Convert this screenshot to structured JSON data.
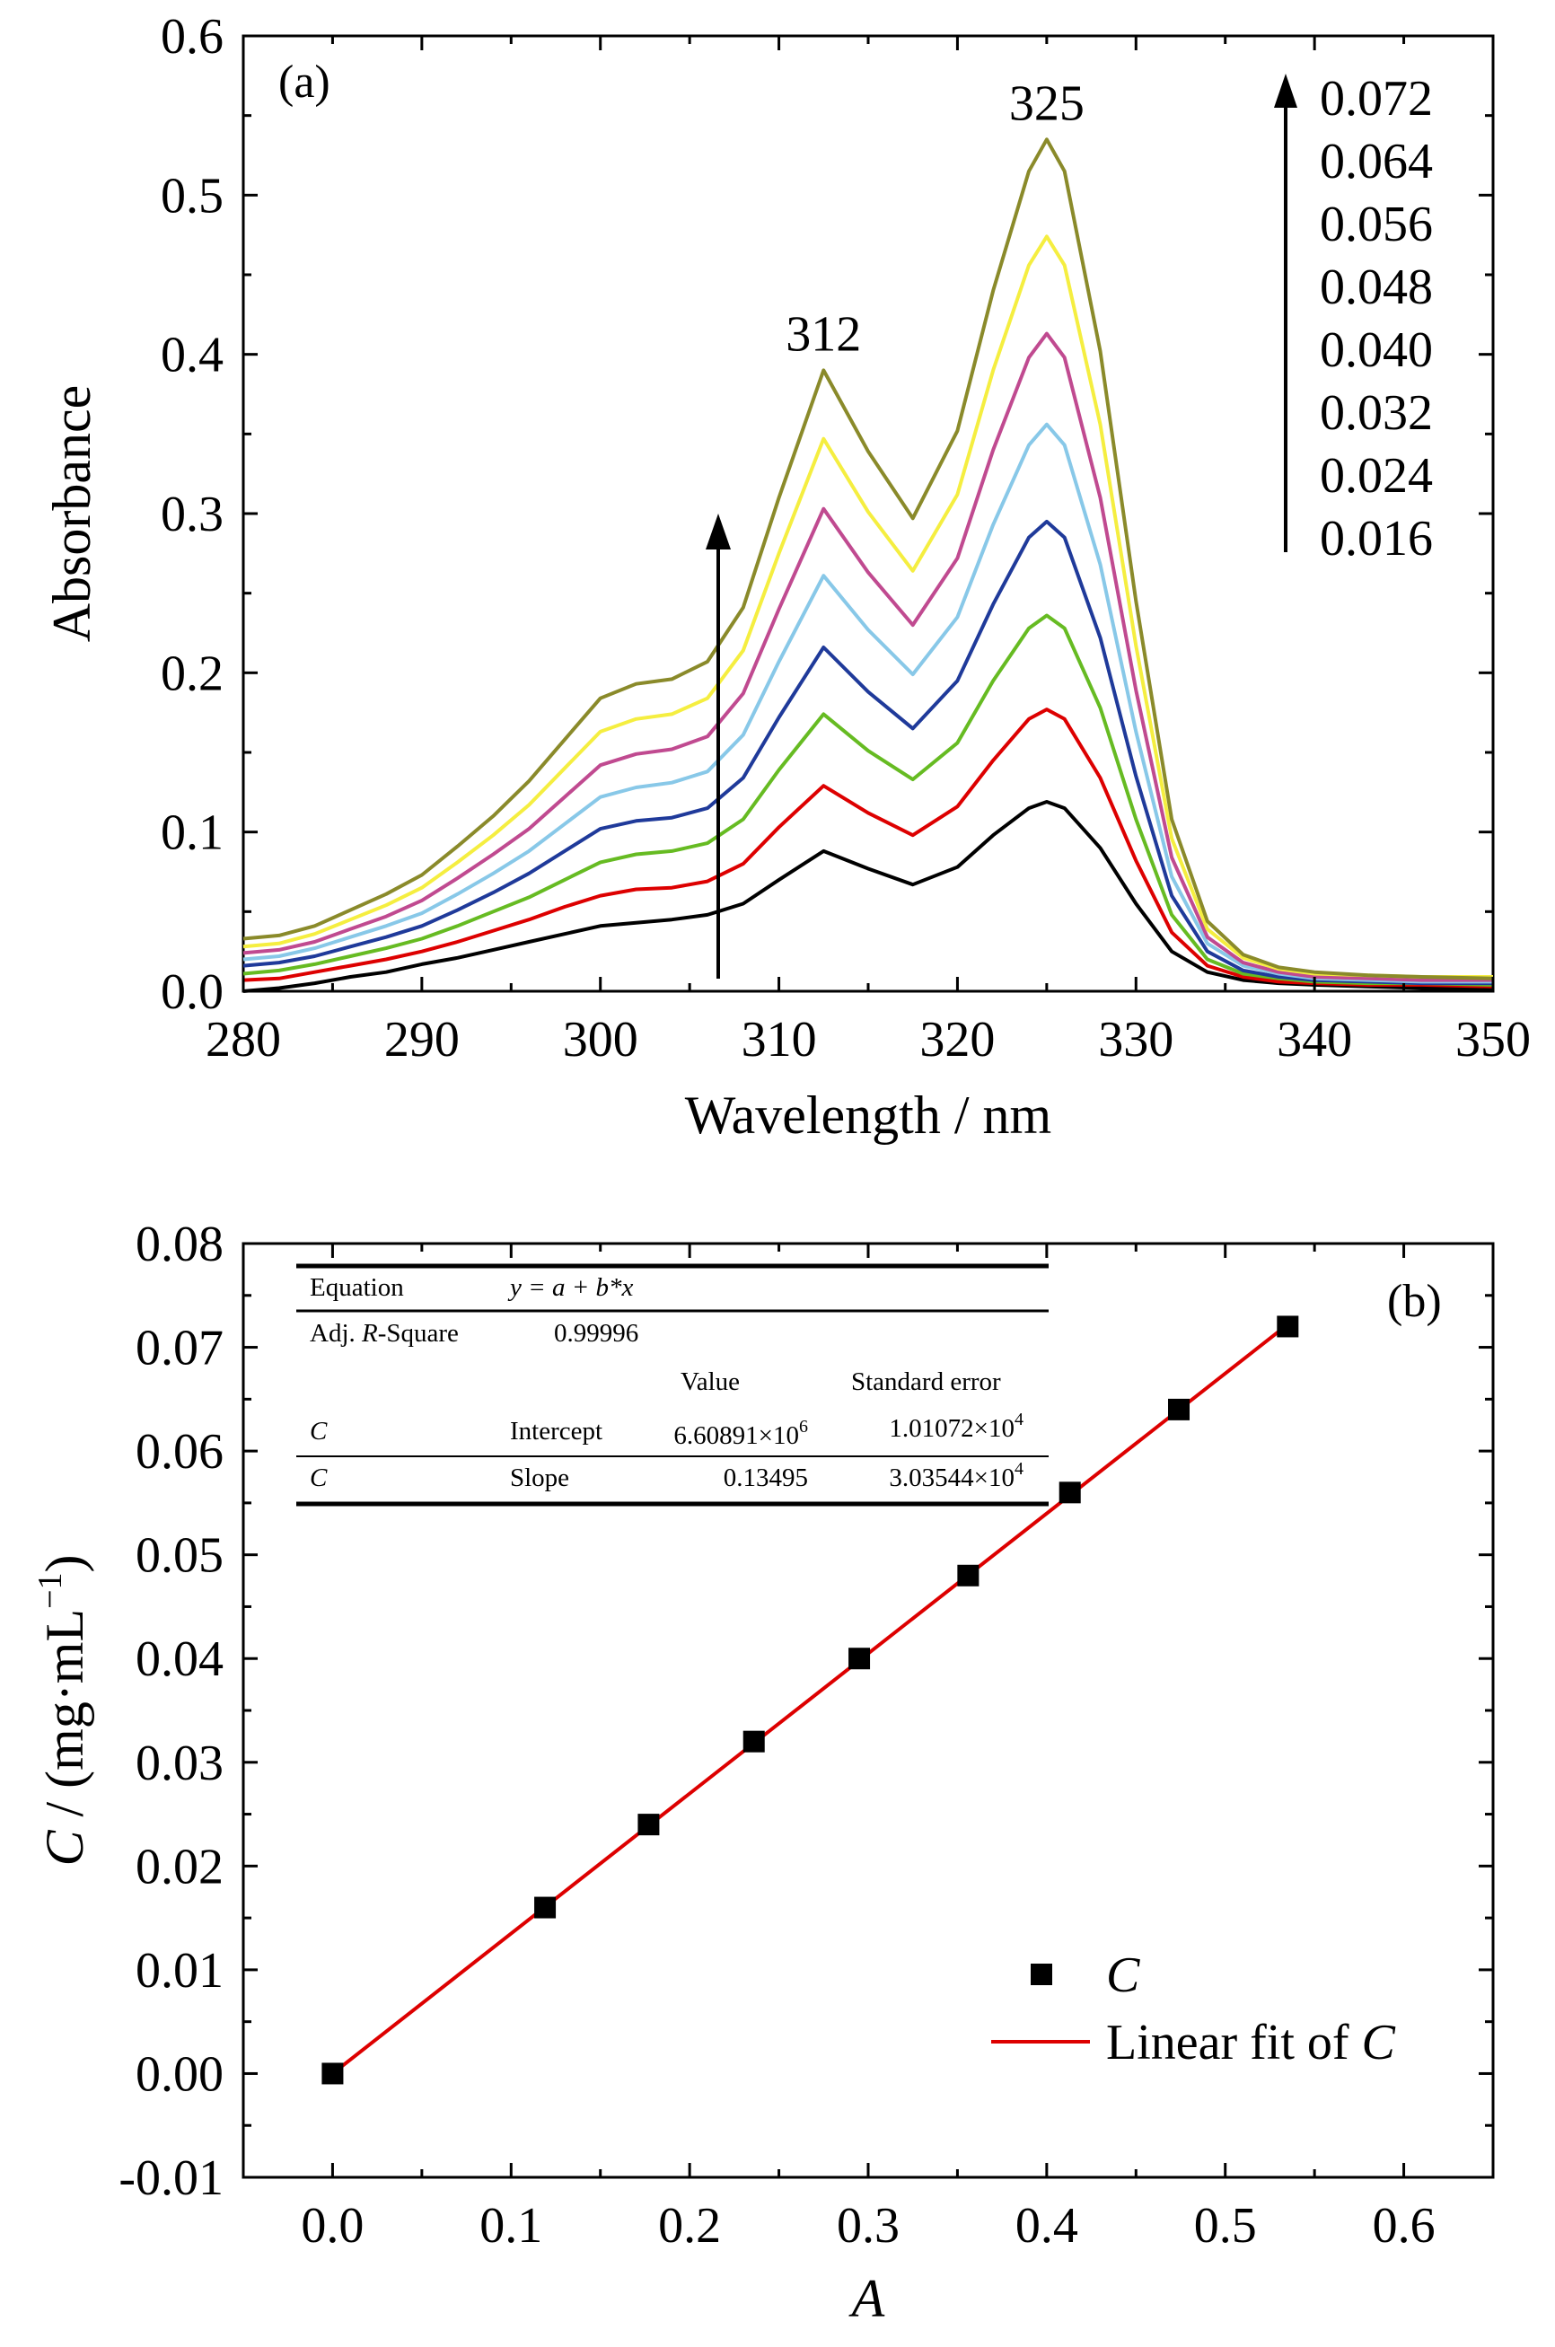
{
  "chart_data": [
    {
      "type": "line",
      "panel_label": "(a)",
      "xlabel": "Wavelength / nm",
      "ylabel": "Absorbance",
      "xlim": [
        280,
        350
      ],
      "ylim": [
        0,
        0.6
      ],
      "xticks": [
        "280",
        "290",
        "300",
        "310",
        "320",
        "330",
        "340",
        "350"
      ],
      "yticks": [
        "0.0",
        "0.1",
        "0.2",
        "0.3",
        "0.4",
        "0.5",
        "0.6"
      ],
      "peak_labels": [
        {
          "text": "312",
          "x": 312.5,
          "y": 0.39
        },
        {
          "text": "325",
          "x": 325,
          "y": 0.535
        }
      ],
      "concentration_labels": [
        "0.072",
        "0.064",
        "0.056",
        "0.048",
        "0.040",
        "0.032",
        "0.024",
        "0.016"
      ],
      "x": [
        280,
        282,
        284,
        286,
        288,
        290,
        292,
        294,
        296,
        298,
        300,
        302,
        304,
        306,
        308,
        310,
        312.5,
        315,
        317.5,
        320,
        322,
        324,
        325,
        326,
        328,
        330,
        332,
        334,
        336,
        338,
        340,
        343,
        346,
        350
      ],
      "series": [
        {
          "color": "#000000",
          "values": [
            0.0,
            0.002,
            0.005,
            0.009,
            0.012,
            0.017,
            0.021,
            0.026,
            0.031,
            0.036,
            0.041,
            0.043,
            0.045,
            0.048,
            0.055,
            0.07,
            0.088,
            0.077,
            0.067,
            0.078,
            0.098,
            0.115,
            0.119,
            0.115,
            0.09,
            0.055,
            0.025,
            0.012,
            0.007,
            0.005,
            0.004,
            0.003,
            0.002,
            0.002
          ]
        },
        {
          "color": "#dd0000",
          "values": [
            0.007,
            0.008,
            0.012,
            0.016,
            0.02,
            0.025,
            0.031,
            0.038,
            0.045,
            0.053,
            0.06,
            0.064,
            0.065,
            0.069,
            0.08,
            0.103,
            0.129,
            0.112,
            0.098,
            0.116,
            0.145,
            0.171,
            0.177,
            0.171,
            0.134,
            0.082,
            0.037,
            0.016,
            0.009,
            0.006,
            0.005,
            0.004,
            0.004,
            0.003
          ]
        },
        {
          "color": "#66bb22",
          "values": [
            0.011,
            0.013,
            0.017,
            0.022,
            0.027,
            0.033,
            0.041,
            0.05,
            0.059,
            0.07,
            0.081,
            0.086,
            0.088,
            0.093,
            0.108,
            0.139,
            0.174,
            0.151,
            0.133,
            0.156,
            0.195,
            0.228,
            0.236,
            0.228,
            0.178,
            0.108,
            0.048,
            0.02,
            0.011,
            0.008,
            0.006,
            0.005,
            0.005,
            0.004
          ]
        },
        {
          "color": "#1f3a9a",
          "values": [
            0.016,
            0.018,
            0.022,
            0.028,
            0.034,
            0.041,
            0.051,
            0.062,
            0.074,
            0.088,
            0.102,
            0.107,
            0.109,
            0.115,
            0.134,
            0.172,
            0.216,
            0.188,
            0.165,
            0.195,
            0.243,
            0.285,
            0.295,
            0.285,
            0.222,
            0.135,
            0.06,
            0.025,
            0.013,
            0.009,
            0.007,
            0.006,
            0.005,
            0.005
          ]
        },
        {
          "color": "#88c8e8",
          "values": [
            0.02,
            0.022,
            0.027,
            0.034,
            0.041,
            0.049,
            0.061,
            0.074,
            0.088,
            0.105,
            0.122,
            0.128,
            0.131,
            0.138,
            0.161,
            0.207,
            0.261,
            0.227,
            0.199,
            0.235,
            0.293,
            0.343,
            0.356,
            0.343,
            0.268,
            0.163,
            0.072,
            0.03,
            0.016,
            0.011,
            0.008,
            0.007,
            0.006,
            0.006
          ]
        },
        {
          "color": "#c04a90",
          "values": [
            0.024,
            0.026,
            0.031,
            0.039,
            0.047,
            0.057,
            0.071,
            0.086,
            0.102,
            0.122,
            0.142,
            0.149,
            0.152,
            0.16,
            0.187,
            0.24,
            0.303,
            0.263,
            0.23,
            0.272,
            0.34,
            0.398,
            0.413,
            0.398,
            0.31,
            0.189,
            0.084,
            0.034,
            0.018,
            0.012,
            0.009,
            0.008,
            0.007,
            0.007
          ]
        },
        {
          "color": "#f5ee40",
          "values": [
            0.028,
            0.03,
            0.036,
            0.045,
            0.054,
            0.065,
            0.081,
            0.098,
            0.117,
            0.14,
            0.163,
            0.171,
            0.174,
            0.184,
            0.214,
            0.275,
            0.347,
            0.301,
            0.264,
            0.312,
            0.39,
            0.456,
            0.474,
            0.456,
            0.356,
            0.217,
            0.096,
            0.039,
            0.021,
            0.014,
            0.011,
            0.01,
            0.009,
            0.009
          ]
        },
        {
          "color": "#8a8a2a",
          "values": [
            0.033,
            0.035,
            0.041,
            0.051,
            0.061,
            0.073,
            0.091,
            0.11,
            0.132,
            0.158,
            0.184,
            0.193,
            0.196,
            0.207,
            0.241,
            0.31,
            0.39,
            0.339,
            0.297,
            0.352,
            0.44,
            0.515,
            0.535,
            0.515,
            0.402,
            0.245,
            0.108,
            0.044,
            0.023,
            0.015,
            0.012,
            0.01,
            0.009,
            0.008
          ]
        }
      ]
    },
    {
      "type": "scatter",
      "panel_label": "(b)",
      "xlabel": "A",
      "ylabel": "C / (mg·mL",
      "ylabel_superscript": "−1",
      "ylabel_close": ")",
      "xlim": [
        -0.05,
        0.65
      ],
      "ylim": [
        -0.01,
        0.08
      ],
      "xticks": [
        "0.0",
        "0.1",
        "0.2",
        "0.3",
        "0.4",
        "0.5",
        "0.6"
      ],
      "yticks": [
        "-0.01",
        "0.00",
        "0.01",
        "0.02",
        "0.03",
        "0.04",
        "0.05",
        "0.06",
        "0.07",
        "0.08"
      ],
      "points": {
        "x": [
          0.0,
          0.119,
          0.177,
          0.236,
          0.295,
          0.356,
          0.413,
          0.474,
          0.535
        ],
        "y": [
          0.0,
          0.016,
          0.024,
          0.032,
          0.04,
          0.048,
          0.056,
          0.064,
          0.072
        ]
      },
      "fit_line": {
        "x": [
          0.0,
          0.535
        ],
        "y": [
          0.0,
          0.0722
        ]
      },
      "legend": {
        "placement": "bottom-right",
        "scatter_label": "C",
        "line_label_prefix": "Linear fit of ",
        "line_label_var": "C"
      },
      "fit_table": {
        "equation_label": "Equation",
        "equation": "y = a + b*x",
        "adj_r_label_pre": "Adj. ",
        "adj_r_label_var": "R",
        "adj_r_label_post": "-Square",
        "adj_r_value": "0.99996",
        "col_value": "Value",
        "col_error": "Standard error",
        "rows": [
          {
            "var": "C",
            "param": "Intercept",
            "value_base": "6.60891×10",
            "value_exp": "6",
            "error_base": "1.01072×10",
            "error_exp": "4"
          },
          {
            "var": "C",
            "param": "Slope",
            "value_base": "0.13495",
            "value_exp": "",
            "error_base": "3.03544×10",
            "error_exp": "4"
          }
        ]
      }
    }
  ],
  "colors": {
    "fit_line": "#dd0000",
    "axes": "#000000",
    "marker": "#000000"
  }
}
